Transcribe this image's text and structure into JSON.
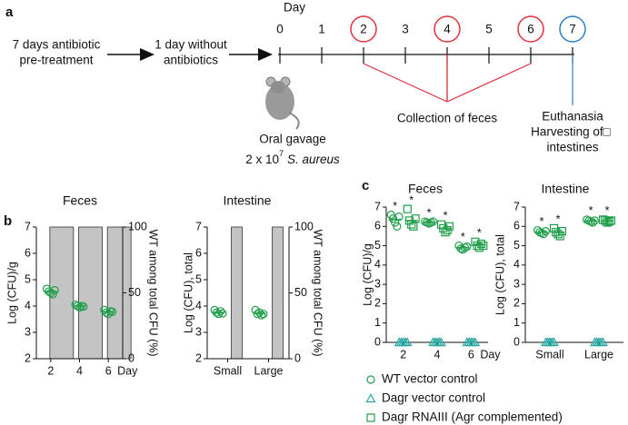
{
  "panel_a": {
    "label": "a",
    "day_title": "Day",
    "days": [
      0,
      1,
      2,
      3,
      4,
      5,
      6,
      7
    ],
    "day_circles": [
      null,
      null,
      "#e0303a",
      null,
      "#e0303a",
      null,
      "#e0303a",
      "#2a7fc0"
    ],
    "pretreatment": [
      "7 days antibiotic",
      "pre-treatment"
    ],
    "without": [
      "1 day without",
      "antibiotics"
    ],
    "gavage": "Oral gavage",
    "dose": "2 x 10",
    "dose_exponent": "7",
    "species": "S. aureus",
    "collection": "Collection of feces",
    "harvest": [
      "Euthanasia",
      "Harvesting of□",
      "intestines"
    ]
  },
  "chart_data": [
    {
      "type": "strip",
      "panel_label": "b",
      "title": "Feces",
      "ylabel": "Log (CFU)/g",
      "y2label": "WT among total CFU (%)",
      "xlabel": "Day",
      "categories": [
        "2",
        "4",
        "6"
      ],
      "ylim": [
        2,
        7
      ],
      "yticks": [
        2,
        3,
        4,
        5,
        6,
        7
      ],
      "y2lim": [
        0,
        100
      ],
      "y2ticks": [
        0,
        50,
        100
      ],
      "series": [
        {
          "type": "bar",
          "axis": "y2",
          "color": "#c4c4c4",
          "values": [
            100,
            100,
            100
          ]
        },
        {
          "marker": "circle",
          "color": "#1f9e4a",
          "values": [
            [
              4.65,
              4.55,
              4.5,
              4.45,
              4.6
            ],
            [
              4.05,
              4.0,
              3.95,
              4.0,
              3.98
            ],
            [
              3.85,
              3.75,
              3.7,
              3.8,
              3.78
            ]
          ],
          "means": [
            4.55,
            4.0,
            3.78
          ]
        }
      ]
    },
    {
      "type": "strip",
      "title": "Intestine",
      "ylabel": "Log (CFU), total",
      "y2label": "WT among total CFU (%)",
      "categories": [
        "Small",
        "Large"
      ],
      "ylim": [
        2,
        7
      ],
      "yticks": [
        2,
        3,
        4,
        5,
        6,
        7
      ],
      "y2lim": [
        0,
        100
      ],
      "y2ticks": [
        0,
        50,
        100
      ],
      "series": [
        {
          "type": "bar",
          "axis": "y2",
          "color": "#c4c4c4",
          "values": [
            100,
            100
          ]
        },
        {
          "marker": "circle",
          "color": "#1f9e4a",
          "values": [
            [
              3.85,
              3.75,
              3.7,
              3.8,
              3.72
            ],
            [
              3.85,
              3.7,
              3.75,
              3.65,
              3.7
            ]
          ],
          "means": [
            3.75,
            3.72
          ]
        }
      ]
    },
    {
      "type": "strip",
      "panel_label": "c",
      "title": "Feces",
      "ylabel": "Log (CFU)/g",
      "xlabel": "Day",
      "categories": [
        "2",
        "4",
        "6"
      ],
      "ylim": [
        0,
        7
      ],
      "yticks": [
        0,
        1,
        2,
        3,
        4,
        5,
        6,
        7
      ],
      "series": [
        {
          "name": "WT vector control",
          "marker": "circle",
          "color": "#1f9e4a",
          "values": [
            [
              6.6,
              6.4,
              6.2,
              6.0,
              6.5
            ],
            [
              6.25,
              6.2,
              6.15,
              6.2,
              6.25
            ],
            [
              5.0,
              4.85,
              4.8,
              4.9,
              4.95
            ]
          ],
          "means": [
            6.35,
            6.2,
            4.9
          ],
          "stars": [
            "*",
            "*",
            "*"
          ]
        },
        {
          "name": "Dagr vector control",
          "marker": "triangle",
          "color": "#2aa5a0",
          "values": [
            [
              0,
              0,
              0,
              0,
              0
            ],
            [
              0,
              0,
              0,
              0,
              0
            ],
            [
              0,
              0,
              0,
              0,
              0
            ]
          ],
          "means": [
            0,
            0,
            0
          ]
        },
        {
          "name": "Dagr RNAIII (Agr complemented)",
          "marker": "square",
          "color": "#1f9e4a",
          "values": [
            [
              6.9,
              6.3,
              6.1,
              6.0,
              6.4
            ],
            [
              6.1,
              5.9,
              5.7,
              5.8,
              6.0
            ],
            [
              5.2,
              5.0,
              4.9,
              5.1,
              5.0
            ]
          ],
          "means": [
            6.3,
            5.9,
            5.05
          ],
          "stars": [
            "*",
            "*",
            "*"
          ]
        }
      ]
    },
    {
      "type": "strip",
      "title": "Intestine",
      "ylabel": "Log (CFU), total",
      "categories": [
        "Small",
        "Large"
      ],
      "ylim": [
        0,
        7
      ],
      "yticks": [
        0,
        1,
        2,
        3,
        4,
        5,
        6,
        7
      ],
      "series": [
        {
          "marker": "circle",
          "color": "#1f9e4a",
          "values": [
            [
              5.8,
              5.7,
              5.65,
              5.6,
              5.75
            ],
            [
              6.35,
              6.3,
              6.25,
              6.2,
              6.3
            ]
          ],
          "means": [
            5.7,
            6.28
          ],
          "stars": [
            "*",
            "*"
          ]
        },
        {
          "marker": "triangle",
          "color": "#2aa5a0",
          "values": [
            [
              0,
              0,
              0,
              0,
              0
            ],
            [
              0,
              0,
              0,
              0,
              0
            ]
          ],
          "means": [
            0,
            0
          ]
        },
        {
          "marker": "square",
          "color": "#1f9e4a",
          "values": [
            [
              5.9,
              5.7,
              5.6,
              5.5,
              5.75
            ],
            [
              6.35,
              6.3,
              6.2,
              6.25,
              6.3
            ]
          ],
          "means": [
            5.7,
            6.28
          ],
          "stars": [
            "*",
            "*"
          ]
        }
      ]
    }
  ]
}
